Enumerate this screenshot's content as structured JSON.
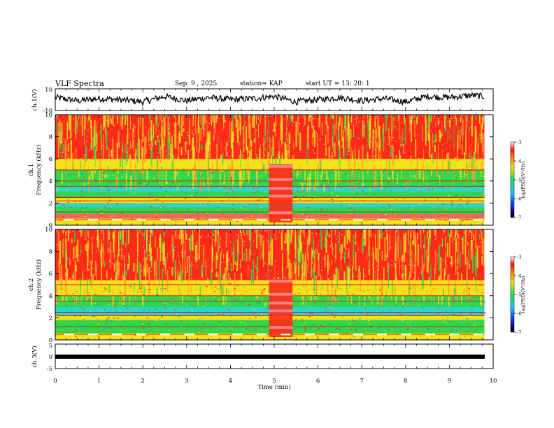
{
  "header": {
    "title": "VLF Spectra",
    "date": "Sep. 9 , 2025",
    "station": "station= KAP",
    "start": "start UT =  13: 20: 1"
  },
  "chart_data": [
    {
      "type": "line",
      "name": "ch1-waveform",
      "ylabel": "ch.1(V)",
      "ylim": [
        -10,
        10
      ],
      "yticks": [
        "10",
        "-10"
      ],
      "xlim": [
        0,
        10
      ],
      "description_series": "ch.1 voltage waveform fluctuating roughly between -6 and 8 V",
      "x": [
        0,
        0.5,
        1.0,
        1.5,
        2.0,
        2.5,
        3.0,
        3.5,
        4.0,
        4.5,
        5.0,
        5.5,
        6.0,
        6.5,
        7.0,
        7.5,
        8.0,
        8.5,
        9.0,
        9.5,
        9.8
      ],
      "values": [
        2,
        -1,
        1,
        0,
        -2,
        3,
        -1,
        2,
        0,
        1,
        3,
        -2,
        0,
        2,
        -1,
        1,
        -2,
        3,
        2,
        4,
        3
      ]
    },
    {
      "type": "heatmap",
      "name": "ch1-spectrogram",
      "ylabel": "ch.1\nFrequency (kHz)",
      "ylim": [
        0,
        10
      ],
      "yticks": [
        "10",
        "8",
        "6",
        "4",
        "2",
        "0"
      ],
      "xlim": [
        0,
        10
      ],
      "colorbar": {
        "label": "log(PSD)(V²/Hz)",
        "ticks": [
          "-3",
          "-4",
          "-5",
          "-6",
          "-7"
        ],
        "range": [
          -7,
          -3
        ]
      }
    },
    {
      "type": "heatmap",
      "name": "ch2-spectrogram",
      "ylabel": "ch.2\nFrequency (kHz)",
      "ylim": [
        0,
        10
      ],
      "yticks": [
        "10",
        "8",
        "6",
        "4",
        "2",
        "0"
      ],
      "xlim": [
        0,
        10
      ],
      "colorbar": {
        "label": "log(PSD)(V²/Hz)",
        "ticks": [
          "-3",
          "-4",
          "-5",
          "-6",
          "-7"
        ],
        "range": [
          -7,
          -3
        ]
      }
    },
    {
      "type": "line",
      "name": "ch3-waveform",
      "ylabel": "ch.3(V)",
      "ylim": [
        -5,
        5
      ],
      "yticks": [
        "5",
        "0",
        "-5"
      ],
      "xlim": [
        0,
        10
      ],
      "x": [
        0,
        9.8
      ],
      "values": [
        0,
        0
      ]
    }
  ],
  "xaxis": {
    "label": "Time (min)",
    "ticks": [
      "0",
      "1",
      "2",
      "3",
      "4",
      "5",
      "6",
      "7",
      "8",
      "9",
      "10"
    ]
  },
  "colors": {
    "ink": "#000000",
    "red": "#ff2a1a",
    "yellow": "#f2e21a",
    "green": "#2fd84a",
    "cyan": "#2ad6c8"
  }
}
